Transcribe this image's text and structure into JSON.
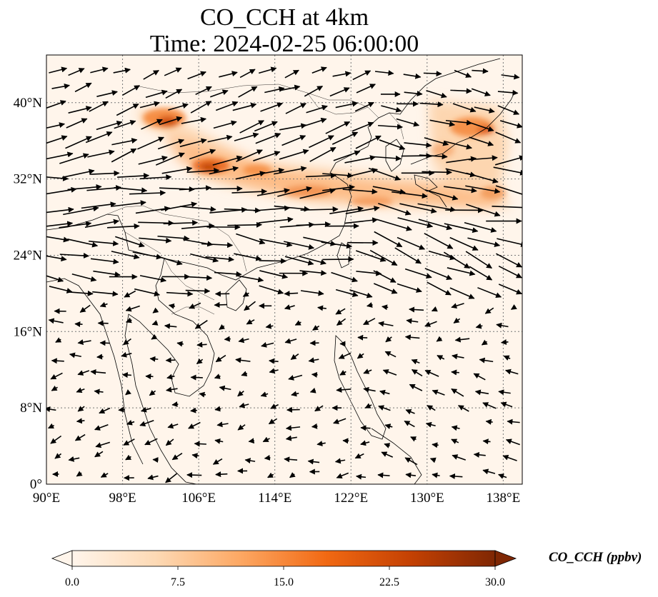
{
  "title": {
    "line1": "CO_CCH at 4km",
    "line2": "Time: 2024-02-25 06:00:00"
  },
  "map": {
    "lon_range": [
      90,
      140
    ],
    "lat_range": [
      0,
      45
    ],
    "x_ticks": [
      {
        "value": 90,
        "label": "90°E"
      },
      {
        "value": 98,
        "label": "98°E"
      },
      {
        "value": 106,
        "label": "106°E"
      },
      {
        "value": 114,
        "label": "114°E"
      },
      {
        "value": 122,
        "label": "122°E"
      },
      {
        "value": 130,
        "label": "130°E"
      },
      {
        "value": 138,
        "label": "138°E"
      }
    ],
    "y_ticks": [
      {
        "value": 0,
        "label": "0°"
      },
      {
        "value": 8,
        "label": "8°N"
      },
      {
        "value": 16,
        "label": "16°N"
      },
      {
        "value": 24,
        "label": "24°N"
      },
      {
        "value": 32,
        "label": "32°N"
      },
      {
        "value": 40,
        "label": "40°N"
      }
    ],
    "gridlines": true,
    "features": [
      "coastlines",
      "country-borders",
      "wind-vectors"
    ]
  },
  "colorbar": {
    "title": "CO_CCH (ppbv)",
    "min": 0,
    "max": 30,
    "colormap": [
      "#fff5eb",
      "#fdd9b4",
      "#fda762",
      "#f16913",
      "#c44103",
      "#7f2704"
    ],
    "ticks": [
      {
        "value": 0,
        "label": "0.0"
      },
      {
        "value": 7.5,
        "label": "7.5"
      },
      {
        "value": 15,
        "label": "15.0"
      },
      {
        "value": 22.5,
        "label": "22.5"
      },
      {
        "value": 30,
        "label": "30.0"
      }
    ],
    "extend": "both"
  }
}
